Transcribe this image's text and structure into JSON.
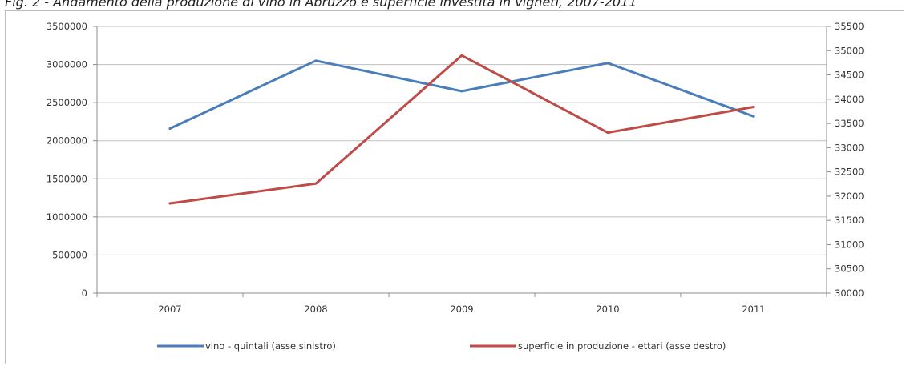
{
  "caption": "Fig. 2 - Andamento della produzione di vino in Abruzzo e superficie investita in vigneti, 2007-2011",
  "chart_data": {
    "type": "line",
    "title": "",
    "categories": [
      "2007",
      "2008",
      "2009",
      "2010",
      "2011"
    ],
    "y_left": {
      "min": 0,
      "max": 3500000,
      "step": 500000,
      "ticks": [
        "0",
        "500000",
        "1000000",
        "1500000",
        "2000000",
        "2500000",
        "3000000",
        "3500000"
      ]
    },
    "y_right": {
      "min": 30000,
      "max": 35500,
      "step": 500,
      "ticks": [
        "30000",
        "30500",
        "31000",
        "31500",
        "32000",
        "32500",
        "33000",
        "33500",
        "34000",
        "34500",
        "35000",
        "35500"
      ]
    },
    "grid": true,
    "legend_position": "bottom",
    "series": [
      {
        "name": "vino - quintali (asse sinistro)",
        "axis": "left",
        "color": "#4a7ebb",
        "values": [
          2160000,
          3050000,
          2650000,
          3020000,
          2320000
        ]
      },
      {
        "name": "superficie in produzione - ettari (asse destro)",
        "axis": "right",
        "color": "#be4b48",
        "values": [
          31850,
          32260,
          34900,
          33310,
          33840
        ]
      }
    ]
  }
}
